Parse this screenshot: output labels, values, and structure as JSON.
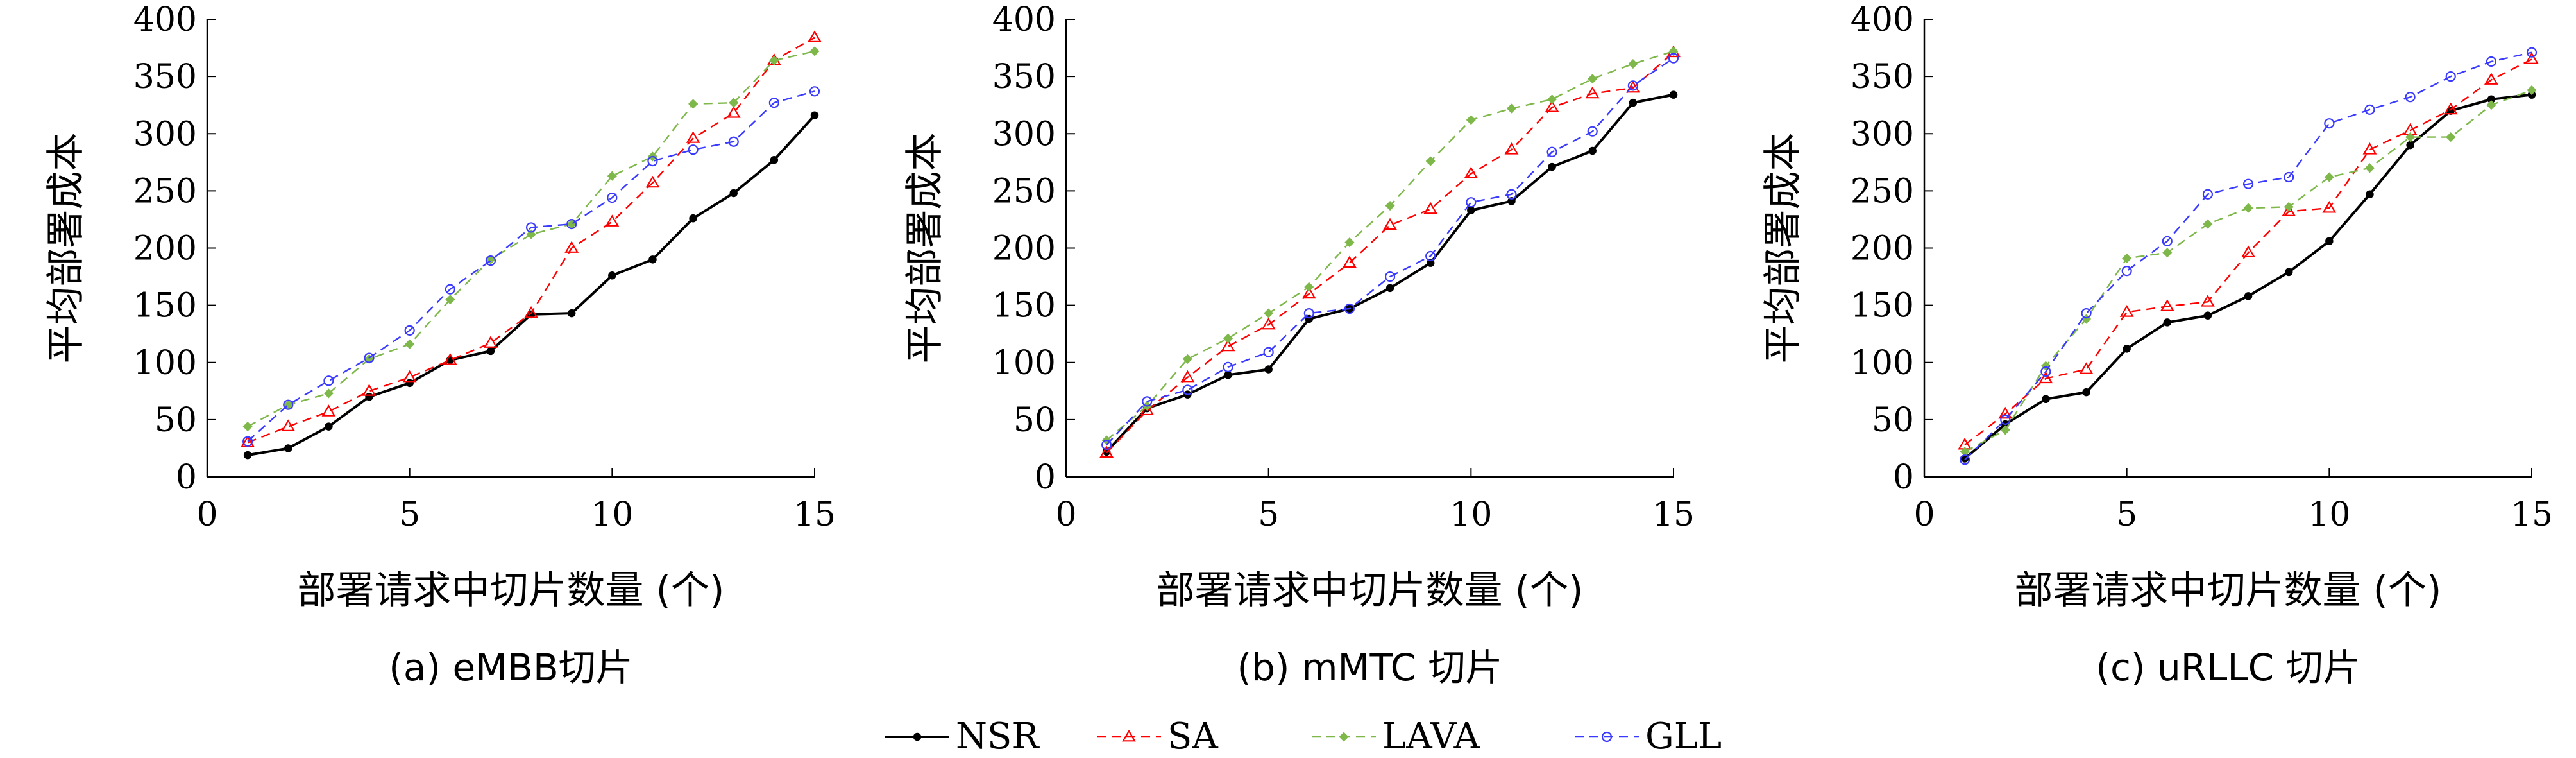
{
  "chart_data": [
    {
      "type": "line",
      "caption": "(a) eMBB切片",
      "xlabel": "部署请求中切片数量 (个)",
      "ylabel": "平均部署成本",
      "xlim": [
        0,
        15
      ],
      "ylim": [
        0,
        400
      ],
      "xticks": [
        0,
        5,
        10,
        15
      ],
      "yticks": [
        0,
        50,
        100,
        150,
        200,
        250,
        300,
        350,
        400
      ],
      "grid": false,
      "x": [
        1,
        2,
        3,
        4,
        5,
        6,
        7,
        8,
        9,
        10,
        11,
        12,
        13,
        14,
        15
      ],
      "series": [
        {
          "name": "NSR",
          "values": [
            19,
            25,
            44,
            70,
            82,
            102,
            110,
            142,
            143,
            176,
            190,
            226,
            248,
            277,
            316
          ]
        },
        {
          "name": "SA",
          "values": [
            30,
            44,
            57,
            75,
            87,
            102,
            117,
            143,
            200,
            223,
            257,
            296,
            318,
            364,
            384
          ]
        },
        {
          "name": "LAVA",
          "values": [
            44,
            63,
            73,
            103,
            116,
            155,
            190,
            212,
            221,
            263,
            280,
            326,
            327,
            364,
            372
          ]
        },
        {
          "name": "GLL",
          "values": [
            31,
            63,
            84,
            104,
            128,
            164,
            189,
            218,
            221,
            244,
            276,
            286,
            293,
            327,
            337
          ]
        }
      ]
    },
    {
      "type": "line",
      "caption": "(b) mMTC 切片",
      "xlabel": "部署请求中切片数量 (个)",
      "ylabel": "平均部署成本",
      "xlim": [
        0,
        15
      ],
      "ylim": [
        0,
        400
      ],
      "xticks": [
        0,
        5,
        10,
        15
      ],
      "yticks": [
        0,
        50,
        100,
        150,
        200,
        250,
        300,
        350,
        400
      ],
      "grid": false,
      "x": [
        1,
        2,
        3,
        4,
        5,
        6,
        7,
        8,
        9,
        10,
        11,
        12,
        13,
        14,
        15
      ],
      "series": [
        {
          "name": "NSR",
          "values": [
            22,
            60,
            72,
            89,
            94,
            138,
            147,
            165,
            187,
            233,
            241,
            271,
            285,
            327,
            334
          ]
        },
        {
          "name": "SA",
          "values": [
            21,
            58,
            87,
            114,
            133,
            160,
            187,
            220,
            234,
            265,
            286,
            323,
            335,
            340,
            371
          ]
        },
        {
          "name": "LAVA",
          "values": [
            32,
            62,
            103,
            121,
            143,
            166,
            205,
            237,
            276,
            312,
            322,
            330,
            348,
            361,
            372
          ]
        },
        {
          "name": "GLL",
          "values": [
            28,
            66,
            76,
            96,
            109,
            143,
            147,
            175,
            193,
            240,
            247,
            284,
            302,
            342,
            366
          ]
        }
      ]
    },
    {
      "type": "line",
      "caption": "(c) uRLLC 切片",
      "xlabel": "部署请求中切片数量 (个)",
      "ylabel": "平均部署成本",
      "xlim": [
        0,
        15
      ],
      "ylim": [
        0,
        400
      ],
      "xticks": [
        0,
        5,
        10,
        15
      ],
      "yticks": [
        0,
        50,
        100,
        150,
        200,
        250,
        300,
        350,
        400
      ],
      "grid": false,
      "x": [
        1,
        2,
        3,
        4,
        5,
        6,
        7,
        8,
        9,
        10,
        11,
        12,
        13,
        14,
        15
      ],
      "series": [
        {
          "name": "NSR",
          "values": [
            16,
            46,
            68,
            74,
            112,
            135,
            141,
            158,
            179,
            206,
            247,
            290,
            320,
            330,
            334
          ]
        },
        {
          "name": "SA",
          "values": [
            28,
            55,
            86,
            94,
            144,
            149,
            153,
            196,
            232,
            235,
            286,
            303,
            321,
            347,
            365
          ]
        },
        {
          "name": "LAVA",
          "values": [
            22,
            41,
            97,
            138,
            191,
            196,
            221,
            235,
            236,
            262,
            270,
            297,
            297,
            325,
            338
          ]
        },
        {
          "name": "GLL",
          "values": [
            15,
            50,
            92,
            143,
            180,
            206,
            247,
            256,
            262,
            309,
            321,
            332,
            350,
            363,
            371
          ]
        }
      ]
    }
  ],
  "legend": {
    "placement": "bottom-center",
    "items": [
      {
        "name": "NSR",
        "color": "#000000",
        "marker": "dot",
        "dash": "solid"
      },
      {
        "name": "SA",
        "color": "#ff0000",
        "marker": "triangle",
        "dash": "dashed"
      },
      {
        "name": "LAVA",
        "color": "#7fb84a",
        "marker": "diamond",
        "dash": "dashed"
      },
      {
        "name": "GLL",
        "color": "#3a3aff",
        "marker": "circle",
        "dash": "dashed"
      }
    ]
  }
}
